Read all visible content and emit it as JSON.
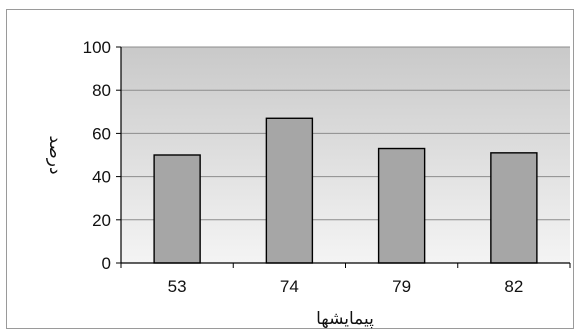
{
  "chart_data": {
    "type": "bar",
    "categories": [
      "53",
      "74",
      "79",
      "82"
    ],
    "values": [
      50,
      67,
      53,
      51
    ],
    "title": "",
    "xlabel": "پیمایشها",
    "ylabel": "درصد",
    "ylim": [
      0,
      100
    ],
    "yticks": [
      "0",
      "20",
      "40",
      "60",
      "80",
      "100"
    ],
    "grid": true,
    "legend": "none",
    "colors": {
      "bar_fill": "#a6a6a6",
      "bar_stroke": "#000000",
      "plot_gradient_top": "#c9c9c9",
      "plot_gradient_bottom": "#f4f4f4",
      "gridline": "#8c8c8c"
    }
  }
}
